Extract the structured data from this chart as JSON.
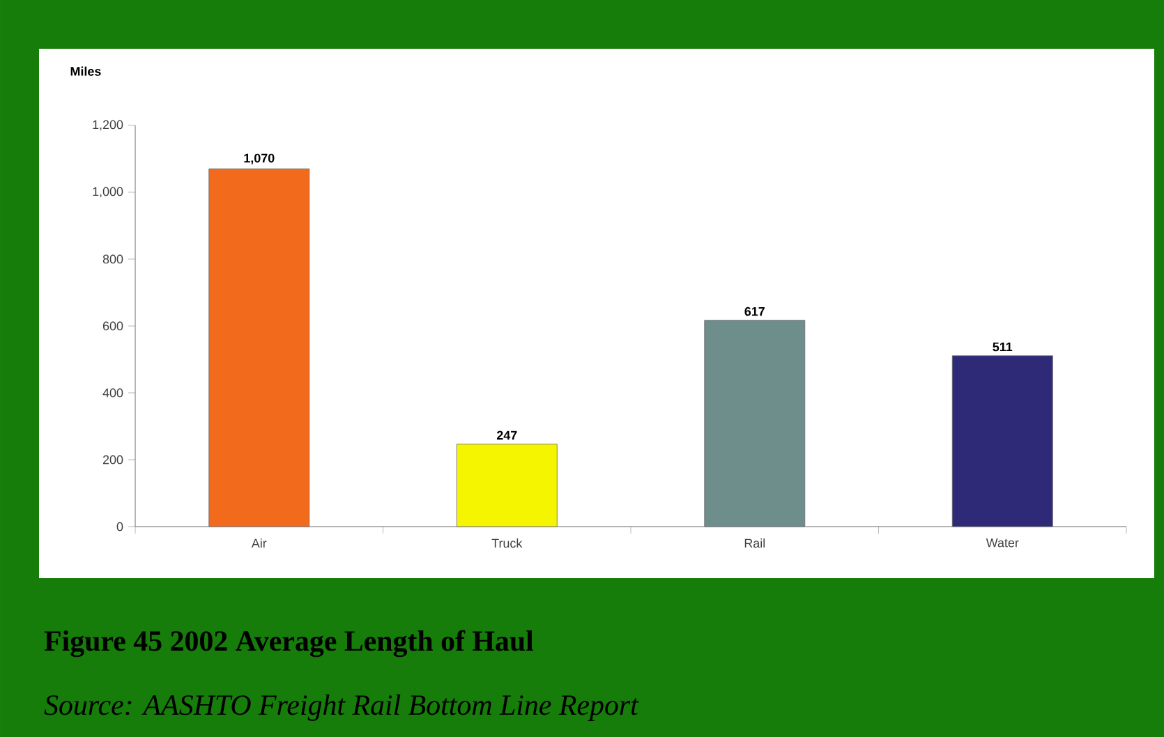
{
  "chart_data": {
    "type": "bar",
    "title": "Figure 45 2002 Average Length of Haul",
    "annotations": [
      "Source: AASHTO Freight Rail Bottom Line Report"
    ],
    "ylabel": "Miles",
    "categories": [
      "Air",
      "Truck",
      "Rail",
      "Water"
    ],
    "values": [
      1070,
      247,
      617,
      511
    ],
    "value_labels": [
      "1,070",
      "247",
      "617",
      "511"
    ],
    "colors": [
      "#f26b1d",
      "#f5f500",
      "#6e8e8c",
      "#2e2a78"
    ],
    "ylim": [
      0,
      1200
    ],
    "yticks": [
      0,
      200,
      400,
      600,
      800,
      {
        "value": 1000,
        "label": "1,000"
      },
      {
        "value": 1200,
        "label": "1,200"
      }
    ]
  }
}
